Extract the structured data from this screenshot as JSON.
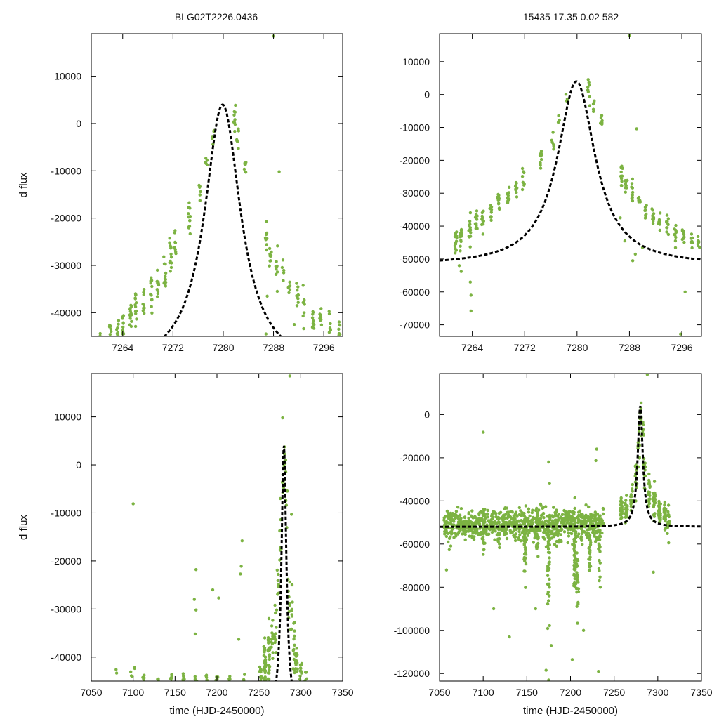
{
  "header": {
    "left_title": "BLG02T2226.0436",
    "right_info": "15435  17.35  0.02  582"
  },
  "colors": {
    "points": "#7cb342",
    "model": "#000000"
  },
  "chart_data": [
    {
      "id": "top-left",
      "type": "scatter",
      "title": "BLG02T2226.0436",
      "xlabel": "",
      "ylabel": "d flux",
      "xlim": [
        7259,
        7299
      ],
      "ylim": [
        -45000,
        19000
      ],
      "xticks": [
        7264,
        7272,
        7280,
        7288,
        7296
      ],
      "yticks": [
        -40000,
        -30000,
        -20000,
        -10000,
        0,
        10000
      ],
      "model": {
        "t0": 7279.9,
        "peak": 4000,
        "base": -52000,
        "tau": 3.5
      },
      "series": [
        {
          "name": "photometry",
          "clusters": [
            [
              7260.5,
              -44800,
              6,
              900
            ],
            [
              7262.0,
              -44000,
              8,
              1100
            ],
            [
              7263.2,
              -43200,
              8,
              1200
            ],
            [
              7264.0,
              -42000,
              10,
              1400
            ],
            [
              7265.3,
              -39800,
              14,
              1700
            ],
            [
              7266.1,
              -38800,
              14,
              1700
            ],
            [
              7267.3,
              -37800,
              10,
              1500
            ],
            [
              7268.5,
              -36000,
              12,
              1800
            ],
            [
              7269.6,
              -34000,
              12,
              1800
            ],
            [
              7270.7,
              -32000,
              12,
              1800
            ],
            [
              7271.6,
              -28500,
              12,
              2200
            ],
            [
              7272.4,
              -26000,
              8,
              2000
            ],
            [
              7274.6,
              -20000,
              12,
              1500
            ],
            [
              7276.3,
              -14000,
              6,
              1200
            ],
            [
              7277.3,
              -8000,
              5,
              800
            ],
            [
              7278.4,
              -3000,
              5,
              900
            ],
            [
              7281.8,
              800,
              10,
              1600
            ],
            [
              7282.3,
              -2500,
              6,
              1200
            ],
            [
              7283.5,
              -9000,
              8,
              1100
            ],
            [
              7286.8,
              -24000,
              8,
              1500
            ],
            [
              7287.5,
              -27500,
              10,
              1700
            ],
            [
              7288.5,
              -30500,
              8,
              1600
            ],
            [
              7289.5,
              -31500,
              6,
              1400
            ],
            [
              7290.5,
              -33000,
              6,
              1600
            ],
            [
              7291.8,
              -36500,
              10,
              1800
            ],
            [
              7292.8,
              -39000,
              10,
              1800
            ],
            [
              7294.3,
              -41000,
              10,
              1500
            ],
            [
              7295.5,
              -42000,
              10,
              1500
            ],
            [
              7297.0,
              -43000,
              8,
              1200
            ],
            [
              7298.5,
              -44000,
              6,
              900
            ]
          ],
          "outliers": [
            [
              7288.0,
              18500
            ],
            [
              7288.9,
              -10200
            ],
            [
              7287.0,
              -36500
            ],
            [
              7288.6,
              -35500
            ],
            [
              7291.3,
              -42500
            ],
            [
              7286.8,
              -44500
            ],
            [
              7264.0,
              -44500
            ]
          ]
        }
      ]
    },
    {
      "id": "top-right",
      "type": "scatter",
      "title": "15435  17.35  0.02  582",
      "xlabel": "",
      "ylabel": "",
      "xlim": [
        7259,
        7299
      ],
      "ylim": [
        -73500,
        18500
      ],
      "xticks": [
        7264,
        7272,
        7280,
        7288,
        7296
      ],
      "yticks": [
        -70000,
        -60000,
        -50000,
        -40000,
        -30000,
        -20000,
        -10000,
        0,
        10000
      ],
      "model": {
        "t0": 7279.9,
        "peak": 4000,
        "base": -52000,
        "tau": 3.5
      },
      "series": [
        {
          "name": "photometry",
          "clusters": [
            [
              7261.5,
              -45000,
              14,
              2500
            ],
            [
              7262.3,
              -44000,
              12,
              2200
            ],
            [
              7263.6,
              -41500,
              14,
              2000
            ],
            [
              7264.6,
              -38500,
              12,
              1800
            ],
            [
              7265.6,
              -37500,
              12,
              1700
            ],
            [
              7266.8,
              -36500,
              10,
              1600
            ],
            [
              7268.0,
              -33000,
              12,
              1800
            ],
            [
              7269.5,
              -31000,
              12,
              1800
            ],
            [
              7270.7,
              -29000,
              10,
              1700
            ],
            [
              7271.8,
              -26000,
              8,
              1600
            ],
            [
              7274.5,
              -19500,
              10,
              1200
            ],
            [
              7276.3,
              -14000,
              6,
              1200
            ],
            [
              7277.2,
              -8000,
              5,
              900
            ],
            [
              7278.4,
              -2000,
              5,
              900
            ],
            [
              7281.8,
              700,
              10,
              1600
            ],
            [
              7282.6,
              -3500,
              6,
              1200
            ],
            [
              7283.7,
              -9000,
              8,
              1200
            ],
            [
              7286.8,
              -24000,
              10,
              2000
            ],
            [
              7287.5,
              -27500,
              10,
              2400
            ],
            [
              7288.4,
              -29500,
              10,
              2000
            ],
            [
              7289.5,
              -32500,
              8,
              2500
            ],
            [
              7290.5,
              -35000,
              8,
              2300
            ],
            [
              7291.6,
              -37000,
              10,
              1800
            ],
            [
              7292.6,
              -38500,
              10,
              1800
            ],
            [
              7293.8,
              -40500,
              12,
              1800
            ],
            [
              7295.0,
              -42000,
              10,
              1600
            ],
            [
              7296.2,
              -43500,
              10,
              1500
            ],
            [
              7297.5,
              -44500,
              10,
              1400
            ],
            [
              7298.6,
              -45000,
              8,
              1200
            ]
          ],
          "outliers": [
            [
              7288.0,
              18000
            ],
            [
              7289.1,
              -10400
            ],
            [
              7262.0,
              -52000
            ],
            [
              7262.3,
              -53800
            ],
            [
              7263.7,
              -57000
            ],
            [
              7263.8,
              -61000
            ],
            [
              7263.8,
              -65800
            ],
            [
              7296.5,
              -60000
            ],
            [
              7288.9,
              -48500
            ],
            [
              7288.5,
              -50500
            ],
            [
              7287.3,
              -44500
            ],
            [
              7286.6,
              -37500
            ],
            [
              7290.0,
              -46500
            ],
            [
              7295.8,
              -72800
            ]
          ]
        }
      ]
    },
    {
      "id": "bottom-left",
      "type": "scatter",
      "title": "",
      "xlabel": "time (HJD-2450000)",
      "ylabel": "d flux",
      "xlim": [
        7050,
        7350
      ],
      "ylim": [
        -45000,
        19000
      ],
      "xticks": [
        7050,
        7100,
        7150,
        7200,
        7250,
        7300,
        7350
      ],
      "yticks": [
        -40000,
        -30000,
        -20000,
        -10000,
        0,
        10000
      ],
      "model": {
        "t0": 7279.9,
        "peak": 4000,
        "base": -52000,
        "tau": 3.5
      },
      "series": [
        {
          "name": "photometry",
          "clusters": [
            [
              7080,
              -43200,
              2,
              300
            ],
            [
              7098,
              -44600,
              4,
              500
            ],
            [
              7102,
              -42500,
              2,
              400
            ],
            [
              7112,
              -44300,
              5,
              500
            ],
            [
              7130,
              -44500,
              3,
              400
            ],
            [
              7145,
              -44200,
              8,
              400
            ],
            [
              7160,
              -44400,
              6,
              400
            ],
            [
              7175,
              -44600,
              6,
              400
            ],
            [
              7188,
              -44400,
              5,
              400
            ],
            [
              7200,
              -44200,
              4,
              400
            ],
            [
              7215,
              -44600,
              4,
              400
            ],
            [
              7232,
              -44600,
              3,
              400
            ],
            [
              7252,
              -43000,
              12,
              1200
            ],
            [
              7257,
              -41500,
              30,
              2200
            ],
            [
              7262,
              -40000,
              30,
              2500
            ],
            [
              7266,
              -37000,
              14,
              2800
            ],
            [
              7270,
              -33000,
              10,
              2500
            ],
            [
              7273,
              -25000,
              8,
              3000
            ],
            [
              7276,
              -16000,
              8,
              4000
            ],
            [
              7279,
              -6000,
              8,
              5000
            ],
            [
              7281,
              0,
              10,
              2500
            ],
            [
              7283,
              -8000,
              6,
              3000
            ],
            [
              7286,
              -25000,
              8,
              3500
            ],
            [
              7289,
              -32000,
              8,
              3000
            ],
            [
              7292,
              -38000,
              14,
              2500
            ],
            [
              7295,
              -41500,
              14,
              1500
            ],
            [
              7300,
              -43000,
              10,
              1500
            ],
            [
              7306,
              -43800,
              6,
              800
            ]
          ],
          "outliers": [
            [
              7100,
              -8100
            ],
            [
              7175,
              -21800
            ],
            [
              7173,
              -28000
            ],
            [
              7175,
              -30200
            ],
            [
              7174,
              -35200
            ],
            [
              7195,
              -26000
            ],
            [
              7202,
              -27700
            ],
            [
              7230,
              -15800
            ],
            [
              7229,
              -21100
            ],
            [
              7228,
              -22700
            ],
            [
              7226,
              -36300
            ],
            [
              7287,
              18500
            ],
            [
              7289,
              -10300
            ],
            [
              7262,
              -32000
            ]
          ]
        }
      ]
    },
    {
      "id": "bottom-right",
      "type": "scatter",
      "title": "",
      "xlabel": "time (HJD-2450000)",
      "ylabel": "",
      "xlim": [
        7050,
        7350
      ],
      "ylim": [
        -123500,
        19000
      ],
      "xticks": [
        7050,
        7100,
        7150,
        7200,
        7250,
        7300,
        7350
      ],
      "yticks": [
        -120000,
        -100000,
        -80000,
        -60000,
        -40000,
        -20000,
        0
      ],
      "model": {
        "t0": 7279.9,
        "peak": 4000,
        "base": -52000,
        "tau": 3.5
      },
      "series": [
        {
          "name": "photometry",
          "band": {
            "xmin": 7055,
            "xmax": 7238,
            "center": -51000,
            "spread": 3500,
            "n": 900
          },
          "clusters": [
            [
              7148,
              -62000,
              40,
              9000
            ],
            [
              7162,
              -58000,
              25,
              8000
            ],
            [
              7175,
              -70000,
              40,
              12000
            ],
            [
              7205,
              -66000,
              40,
              11000
            ],
            [
              7208,
              -78000,
              25,
              9000
            ],
            [
              7222,
              -62000,
              25,
              7000
            ],
            [
              7233,
              -64000,
              25,
              9000
            ],
            [
              7100,
              -58000,
              14,
              6000
            ],
            [
              7118,
              -56000,
              12,
              5000
            ],
            [
              7258,
              -44000,
              30,
              2500
            ],
            [
              7264,
              -46000,
              20,
              3500
            ],
            [
              7270,
              -40000,
              14,
              3000
            ],
            [
              7275,
              -28000,
              12,
              4000
            ],
            [
              7278,
              -15000,
              10,
              5000
            ],
            [
              7280,
              -2000,
              10,
              3500
            ],
            [
              7282,
              -8000,
              8,
              3500
            ],
            [
              7285,
              -25000,
              10,
              4500
            ],
            [
              7290,
              -38000,
              20,
              4000
            ],
            [
              7296,
              -42000,
              25,
              3500
            ],
            [
              7302,
              -45000,
              30,
              3500
            ],
            [
              7308,
              -47000,
              30,
              3500
            ],
            [
              7312,
              -49500,
              20,
              3000
            ]
          ],
          "outliers": [
            [
              7100,
              -8200
            ],
            [
              7175,
              -22000
            ],
            [
              7176,
              -32000
            ],
            [
              7230,
              -16000
            ],
            [
              7229,
              -21300
            ],
            [
              7175,
              -123000
            ],
            [
              7202,
              -113500
            ],
            [
              7232,
              -119000
            ],
            [
              7130,
              -103000
            ],
            [
              7112,
              -90000
            ],
            [
              7288,
              18500
            ],
            [
              7284,
              -9500
            ],
            [
              7295,
              -73000
            ],
            [
              7058,
              -72000
            ],
            [
              7178,
              -107000
            ],
            [
              7172,
              -118500
            ],
            [
              7215,
              -100000
            ],
            [
              7160,
              -90000
            ]
          ]
        }
      ]
    }
  ]
}
